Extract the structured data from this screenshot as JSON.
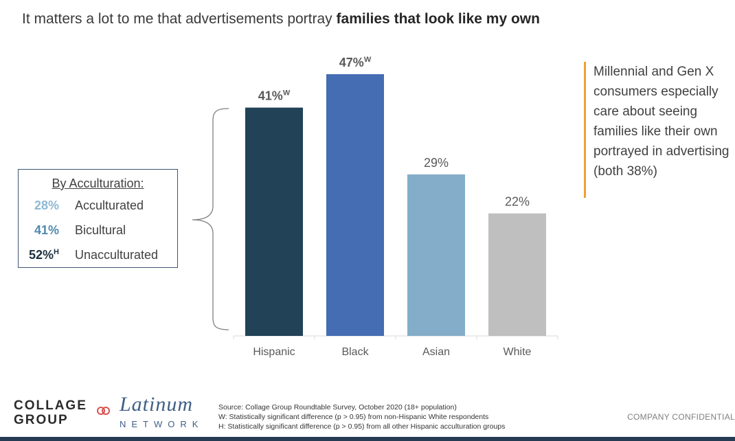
{
  "title": {
    "prefix": "It matters a lot to me that advertisements portray ",
    "emphasis": "families that look like my own"
  },
  "chart_data": {
    "type": "bar",
    "categories": [
      "Hispanic",
      "Black",
      "Asian",
      "White"
    ],
    "values": [
      41,
      47,
      29,
      22
    ],
    "labels": [
      "41%",
      "47%",
      "29%",
      "22%"
    ],
    "superscripts": [
      "W",
      "W",
      "",
      ""
    ],
    "colors": [
      "#214257",
      "#446db3",
      "#83adc8",
      "#bfbfbf"
    ],
    "ylim": [
      0,
      50
    ],
    "grid": false
  },
  "legend": {
    "title": "By Acculturation:",
    "rows": [
      {
        "pct": "28%",
        "sup": "",
        "label": "Acculturated",
        "color": "#8fb8d6"
      },
      {
        "pct": "41%",
        "sup": "",
        "label": "Bicultural",
        "color": "#4f8ab0"
      },
      {
        "pct": "52%",
        "sup": "H",
        "label": "Unacculturated",
        "color": "#1c2f3f"
      }
    ]
  },
  "callout": {
    "text": "Millennial and Gen X consumers especially care about seeing families like their own portrayed in advertising\n(both 38%)",
    "accent": "#f0a030"
  },
  "footer": {
    "logo_collage": "COLLAGE\nGROUP",
    "logo_latinum": "Latinum",
    "logo_network": "NETWORK",
    "source_lines": [
      "Source: Collage Group Roundtable Survey, October 2020 (18+ population)",
      "W: Statistically significant difference (p > 0.95) from non-Hispanic White respondents",
      "H: Statistically significant difference (p > 0.95) from all other Hispanic acculturation groups"
    ],
    "confidential": "COMPANY CONFIDENTIAL"
  }
}
